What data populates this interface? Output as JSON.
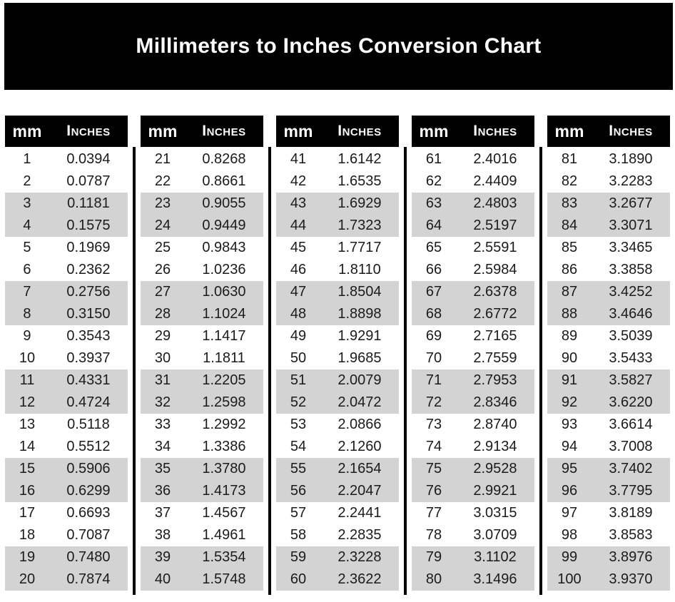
{
  "title": "Millimeters to Inches Conversion Chart",
  "colors": {
    "banner_bg": "#000000",
    "header_bg": "#000000",
    "stripe_gray": "#d3d3d3",
    "row_white": "#ffffff",
    "text": "#1b1b1b",
    "header_text": "#ffffff",
    "page_bg": "#ffffff"
  },
  "table": {
    "col_mm": "mm",
    "col_inches": "Inches",
    "blocks": [
      {
        "rows": [
          [
            "1",
            "0.0394"
          ],
          [
            "2",
            "0.0787"
          ],
          [
            "3",
            "0.1181"
          ],
          [
            "4",
            "0.1575"
          ],
          [
            "5",
            "0.1969"
          ],
          [
            "6",
            "0.2362"
          ],
          [
            "7",
            "0.2756"
          ],
          [
            "8",
            "0.3150"
          ],
          [
            "9",
            "0.3543"
          ],
          [
            "10",
            "0.3937"
          ],
          [
            "11",
            "0.4331"
          ],
          [
            "12",
            "0.4724"
          ],
          [
            "13",
            "0.5118"
          ],
          [
            "14",
            "0.5512"
          ],
          [
            "15",
            "0.5906"
          ],
          [
            "16",
            "0.6299"
          ],
          [
            "17",
            "0.6693"
          ],
          [
            "18",
            "0.7087"
          ],
          [
            "19",
            "0.7480"
          ],
          [
            "20",
            "0.7874"
          ]
        ]
      },
      {
        "rows": [
          [
            "21",
            "0.8268"
          ],
          [
            "22",
            "0.8661"
          ],
          [
            "23",
            "0.9055"
          ],
          [
            "24",
            "0.9449"
          ],
          [
            "25",
            "0.9843"
          ],
          [
            "26",
            "1.0236"
          ],
          [
            "27",
            "1.0630"
          ],
          [
            "28",
            "1.1024"
          ],
          [
            "29",
            "1.1417"
          ],
          [
            "30",
            "1.1811"
          ],
          [
            "31",
            "1.2205"
          ],
          [
            "32",
            "1.2598"
          ],
          [
            "33",
            "1.2992"
          ],
          [
            "34",
            "1.3386"
          ],
          [
            "35",
            "1.3780"
          ],
          [
            "36",
            "1.4173"
          ],
          [
            "37",
            "1.4567"
          ],
          [
            "38",
            "1.4961"
          ],
          [
            "39",
            "1.5354"
          ],
          [
            "40",
            "1.5748"
          ]
        ]
      },
      {
        "rows": [
          [
            "41",
            "1.6142"
          ],
          [
            "42",
            "1.6535"
          ],
          [
            "43",
            "1.6929"
          ],
          [
            "44",
            "1.7323"
          ],
          [
            "45",
            "1.7717"
          ],
          [
            "46",
            "1.8110"
          ],
          [
            "47",
            "1.8504"
          ],
          [
            "48",
            "1.8898"
          ],
          [
            "49",
            "1.9291"
          ],
          [
            "50",
            "1.9685"
          ],
          [
            "51",
            "2.0079"
          ],
          [
            "52",
            "2.0472"
          ],
          [
            "53",
            "2.0866"
          ],
          [
            "54",
            "2.1260"
          ],
          [
            "55",
            "2.1654"
          ],
          [
            "56",
            "2.2047"
          ],
          [
            "57",
            "2.2441"
          ],
          [
            "58",
            "2.2835"
          ],
          [
            "59",
            "2.3228"
          ],
          [
            "60",
            "2.3622"
          ]
        ]
      },
      {
        "rows": [
          [
            "61",
            "2.4016"
          ],
          [
            "62",
            "2.4409"
          ],
          [
            "63",
            "2.4803"
          ],
          [
            "64",
            "2.5197"
          ],
          [
            "65",
            "2.5591"
          ],
          [
            "66",
            "2.5984"
          ],
          [
            "67",
            "2.6378"
          ],
          [
            "68",
            "2.6772"
          ],
          [
            "69",
            "2.7165"
          ],
          [
            "70",
            "2.7559"
          ],
          [
            "71",
            "2.7953"
          ],
          [
            "72",
            "2.8346"
          ],
          [
            "73",
            "2.8740"
          ],
          [
            "74",
            "2.9134"
          ],
          [
            "75",
            "2.9528"
          ],
          [
            "76",
            "2.9921"
          ],
          [
            "77",
            "3.0315"
          ],
          [
            "78",
            "3.0709"
          ],
          [
            "79",
            "3.1102"
          ],
          [
            "80",
            "3.1496"
          ]
        ]
      },
      {
        "rows": [
          [
            "81",
            "3.1890"
          ],
          [
            "82",
            "3.2283"
          ],
          [
            "83",
            "3.2677"
          ],
          [
            "84",
            "3.3071"
          ],
          [
            "85",
            "3.3465"
          ],
          [
            "86",
            "3.3858"
          ],
          [
            "87",
            "3.4252"
          ],
          [
            "88",
            "3.4646"
          ],
          [
            "89",
            "3.5039"
          ],
          [
            "90",
            "3.5433"
          ],
          [
            "91",
            "3.5827"
          ],
          [
            "92",
            "3.6220"
          ],
          [
            "93",
            "3.6614"
          ],
          [
            "94",
            "3.7008"
          ],
          [
            "95",
            "3.7402"
          ],
          [
            "96",
            "3.7795"
          ],
          [
            "97",
            "3.8189"
          ],
          [
            "98",
            "3.8583"
          ],
          [
            "99",
            "3.8976"
          ],
          [
            "100",
            "3.9370"
          ]
        ]
      }
    ]
  }
}
